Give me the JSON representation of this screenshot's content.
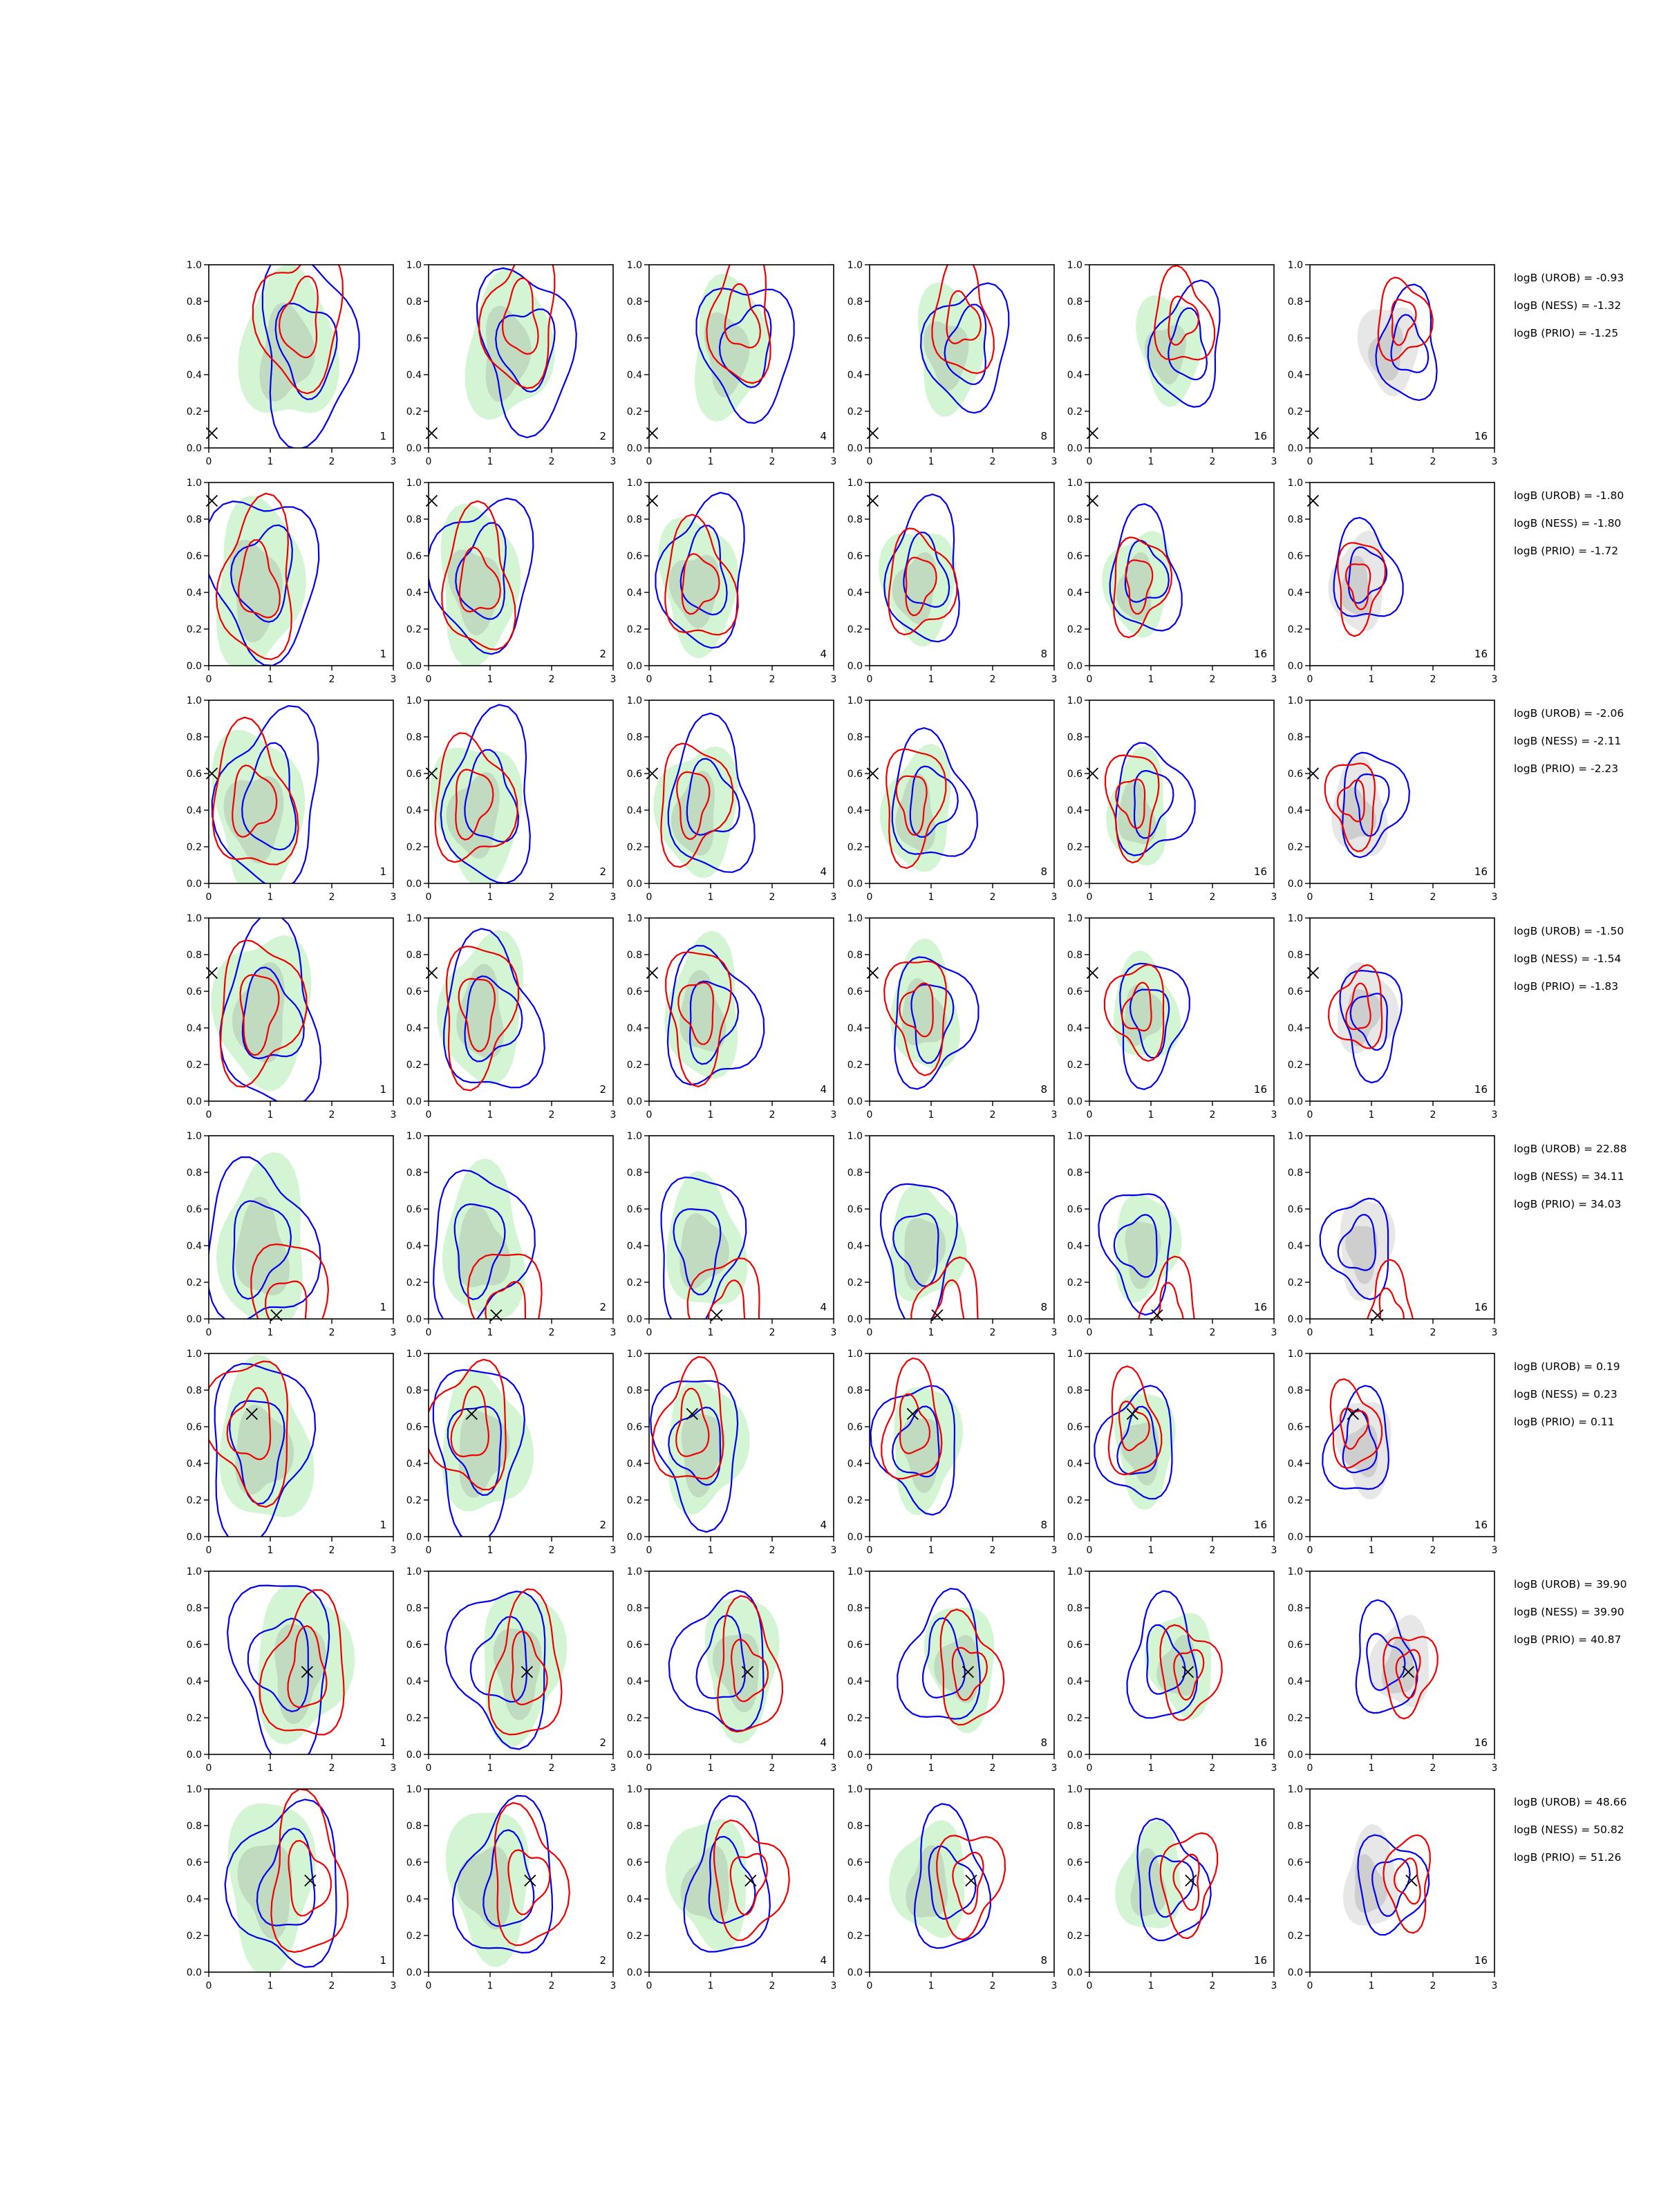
{
  "chart_data": {
    "type": "contour-grid",
    "layout": "8 rows x 6 columns",
    "xlim": [
      0,
      3
    ],
    "ylim": [
      0,
      1
    ],
    "x_ticks": [
      "0",
      "1",
      "2",
      "3"
    ],
    "y_ticks": [
      "0.0",
      "0.2",
      "0.4",
      "0.6",
      "0.8",
      "1.0"
    ],
    "column_labels": [
      "1",
      "2",
      "4",
      "8",
      "16",
      "16"
    ],
    "colors": {
      "green_fill": "#9ee89e",
      "gray_fill": "#b0b0b0",
      "blue_contour": "#0000ee",
      "red_contour": "#ee0000",
      "true_value_marker": "#000000"
    },
    "rows": [
      {
        "truth": {
          "x": 0.05,
          "y": 0.08
        },
        "green": {
          "x": 1.3,
          "y": 0.55
        },
        "blue": {
          "x": 1.6,
          "y": 0.55
        },
        "red": {
          "x": 1.5,
          "y": 0.7
        },
        "logB": [
          "logB (UROB) = -0.93",
          "logB (NESS) = -1.32",
          "logB (PRIO) = -1.25"
        ]
      },
      {
        "truth": {
          "x": 0.05,
          "y": 0.9
        },
        "green": {
          "x": 0.8,
          "y": 0.45
        },
        "blue": {
          "x": 0.9,
          "y": 0.5
        },
        "red": {
          "x": 0.8,
          "y": 0.45
        },
        "logB": [
          "logB (UROB) = -1.80",
          "logB (NESS) = -1.80",
          "logB (PRIO) = -1.72"
        ]
      },
      {
        "truth": {
          "x": 0.05,
          "y": 0.6
        },
        "green": {
          "x": 0.8,
          "y": 0.4
        },
        "blue": {
          "x": 1.0,
          "y": 0.45
        },
        "red": {
          "x": 0.7,
          "y": 0.45
        },
        "logB": [
          "logB (UROB) = -2.06",
          "logB (NESS) = -2.11",
          "logB (PRIO) = -2.23"
        ]
      },
      {
        "truth": {
          "x": 0.05,
          "y": 0.7
        },
        "green": {
          "x": 0.9,
          "y": 0.5
        },
        "blue": {
          "x": 1.0,
          "y": 0.45
        },
        "red": {
          "x": 0.8,
          "y": 0.5
        },
        "logB": [
          "logB (UROB) = -1.50",
          "logB (NESS) = -1.54",
          "logB (PRIO) = -1.83"
        ]
      },
      {
        "truth": {
          "x": 1.1,
          "y": 0.02
        },
        "green": {
          "x": 0.9,
          "y": 0.4
        },
        "blue": {
          "x": 0.8,
          "y": 0.4
        },
        "red": {
          "x": 1.3,
          "y": 0.03
        },
        "logB": [
          "logB (UROB) = 22.88",
          "logB (NESS) = 34.11",
          "logB (PRIO) = 34.03"
        ]
      },
      {
        "truth": {
          "x": 0.7,
          "y": 0.67
        },
        "green": {
          "x": 0.9,
          "y": 0.5
        },
        "blue": {
          "x": 0.8,
          "y": 0.5
        },
        "red": {
          "x": 0.7,
          "y": 0.6
        },
        "logB": [
          "logB (UROB) = 0.19",
          "logB (NESS) = 0.23",
          "logB (PRIO) = 0.11"
        ]
      },
      {
        "truth": {
          "x": 1.6,
          "y": 0.45
        },
        "green": {
          "x": 1.5,
          "y": 0.5
        },
        "blue": {
          "x": 1.2,
          "y": 0.5
        },
        "red": {
          "x": 1.6,
          "y": 0.45
        },
        "logB": [
          "logB (UROB) = 39.90",
          "logB (NESS) = 39.90",
          "logB (PRIO) = 40.87"
        ]
      },
      {
        "truth": {
          "x": 1.65,
          "y": 0.5
        },
        "green": {
          "x": 1.0,
          "y": 0.5
        },
        "blue": {
          "x": 1.3,
          "y": 0.48
        },
        "red": {
          "x": 1.6,
          "y": 0.5
        },
        "logB": [
          "logB (UROB) = 48.66",
          "logB (NESS) = 50.82",
          "logB (PRIO) = 51.26"
        ]
      }
    ]
  }
}
